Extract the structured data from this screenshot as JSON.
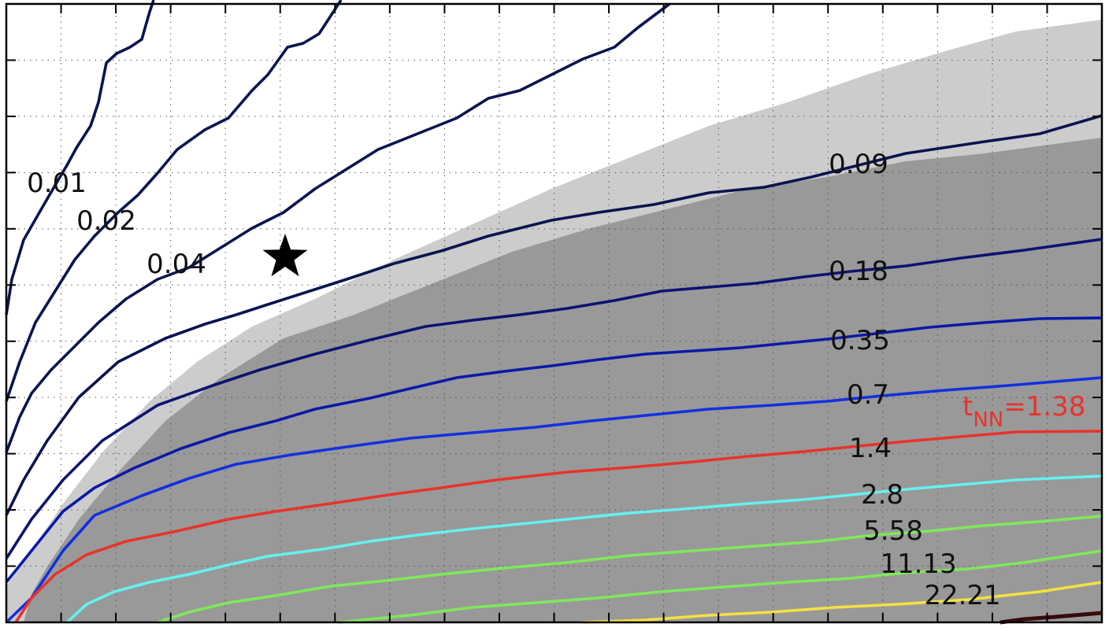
{
  "chart_data": {
    "type": "contour",
    "title": "",
    "xlabel": "",
    "ylabel": "",
    "grid": true,
    "tick_labels_visible": false,
    "x_ticks": 20,
    "y_ticks": 11,
    "regions": [
      {
        "name": "",
        "color": "#cccccc"
      },
      {
        "name": "",
        "color": "#999999"
      }
    ],
    "contour_levels": [
      {
        "label": "0.01",
        "color": "#0a1450"
      },
      {
        "label": "0.02",
        "color": "#0a1450"
      },
      {
        "label": "0.04",
        "color": "#0a1450"
      },
      {
        "label": "0.09",
        "color": "#0a1450"
      },
      {
        "label": "0.18",
        "color": "#0c1470"
      },
      {
        "label": "0.35",
        "color": "#0a1aa8"
      },
      {
        "label": "0.7",
        "color": "#1230e0"
      },
      {
        "label": "1.4",
        "color": "#e8332a"
      },
      {
        "label": "2.8",
        "color": "#66f0f0"
      },
      {
        "label": "5.58",
        "color": "#7ee85a"
      },
      {
        "label": "11.13",
        "color": "#7ee85a"
      },
      {
        "label": "22.21",
        "color": "#f5e042"
      },
      {
        "label": "",
        "color": "#3a0a0a"
      }
    ],
    "annotations": [
      {
        "text": "t",
        "subscript": "NN",
        "suffix": "=1.38",
        "color": "#e8332a"
      }
    ],
    "markers": [
      {
        "shape": "star",
        "color": "#000000"
      }
    ]
  }
}
